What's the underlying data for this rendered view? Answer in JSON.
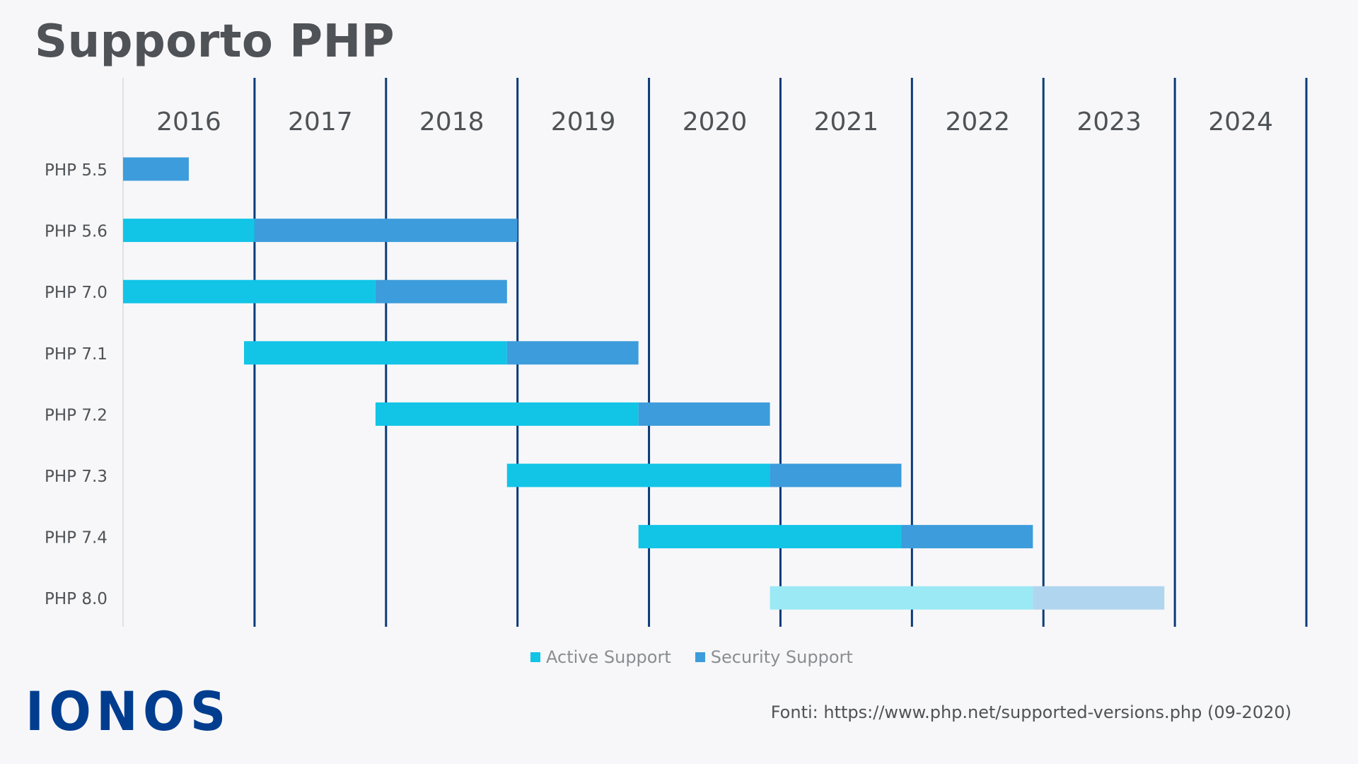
{
  "header": {
    "title": "Supporto PHP"
  },
  "chart_data": {
    "type": "gantt",
    "title": "Supporto PHP",
    "x_axis": {
      "years": [
        "2016",
        "2017",
        "2018",
        "2019",
        "2020",
        "2021",
        "2022",
        "2023",
        "2024"
      ],
      "range": [
        2016.0,
        2025.0
      ]
    },
    "rows": [
      {
        "label": "PHP 5.5",
        "active": null,
        "security": [
          2016.0,
          2016.5
        ],
        "projected": false
      },
      {
        "label": "PHP 5.6",
        "active": [
          2016.0,
          2017.0
        ],
        "security": [
          2017.0,
          2019.0
        ],
        "projected": false
      },
      {
        "label": "PHP 7.0",
        "active": [
          2016.0,
          2017.92
        ],
        "security": [
          2017.92,
          2018.92
        ],
        "projected": false
      },
      {
        "label": "PHP 7.1",
        "active": [
          2016.92,
          2018.92
        ],
        "security": [
          2018.92,
          2019.92
        ],
        "projected": false
      },
      {
        "label": "PHP 7.2",
        "active": [
          2017.92,
          2019.92
        ],
        "security": [
          2019.92,
          2020.92
        ],
        "projected": false
      },
      {
        "label": "PHP 7.3",
        "active": [
          2018.92,
          2020.92
        ],
        "security": [
          2020.92,
          2021.92
        ],
        "projected": false
      },
      {
        "label": "PHP 7.4",
        "active": [
          2019.92,
          2021.92
        ],
        "security": [
          2021.92,
          2022.92
        ],
        "projected": false
      },
      {
        "label": "PHP 8.0",
        "active": [
          2020.92,
          2022.92
        ],
        "security": [
          2022.92,
          2023.92
        ],
        "projected": true
      }
    ],
    "legend": [
      {
        "name": "Active Support",
        "color": "#12c4e6"
      },
      {
        "name": "Security Support",
        "color": "#3d9cdb"
      }
    ],
    "colors": {
      "active": "#12c4e6",
      "security": "#3d9cdb",
      "active_projected": "#9be9f4",
      "security_projected": "#b0d5ef",
      "gridline": "#0b3a7a"
    }
  },
  "footer": {
    "logo": "IONOS",
    "source": "Fonti: https://www.php.net/supported-versions.php (09-2020)"
  }
}
